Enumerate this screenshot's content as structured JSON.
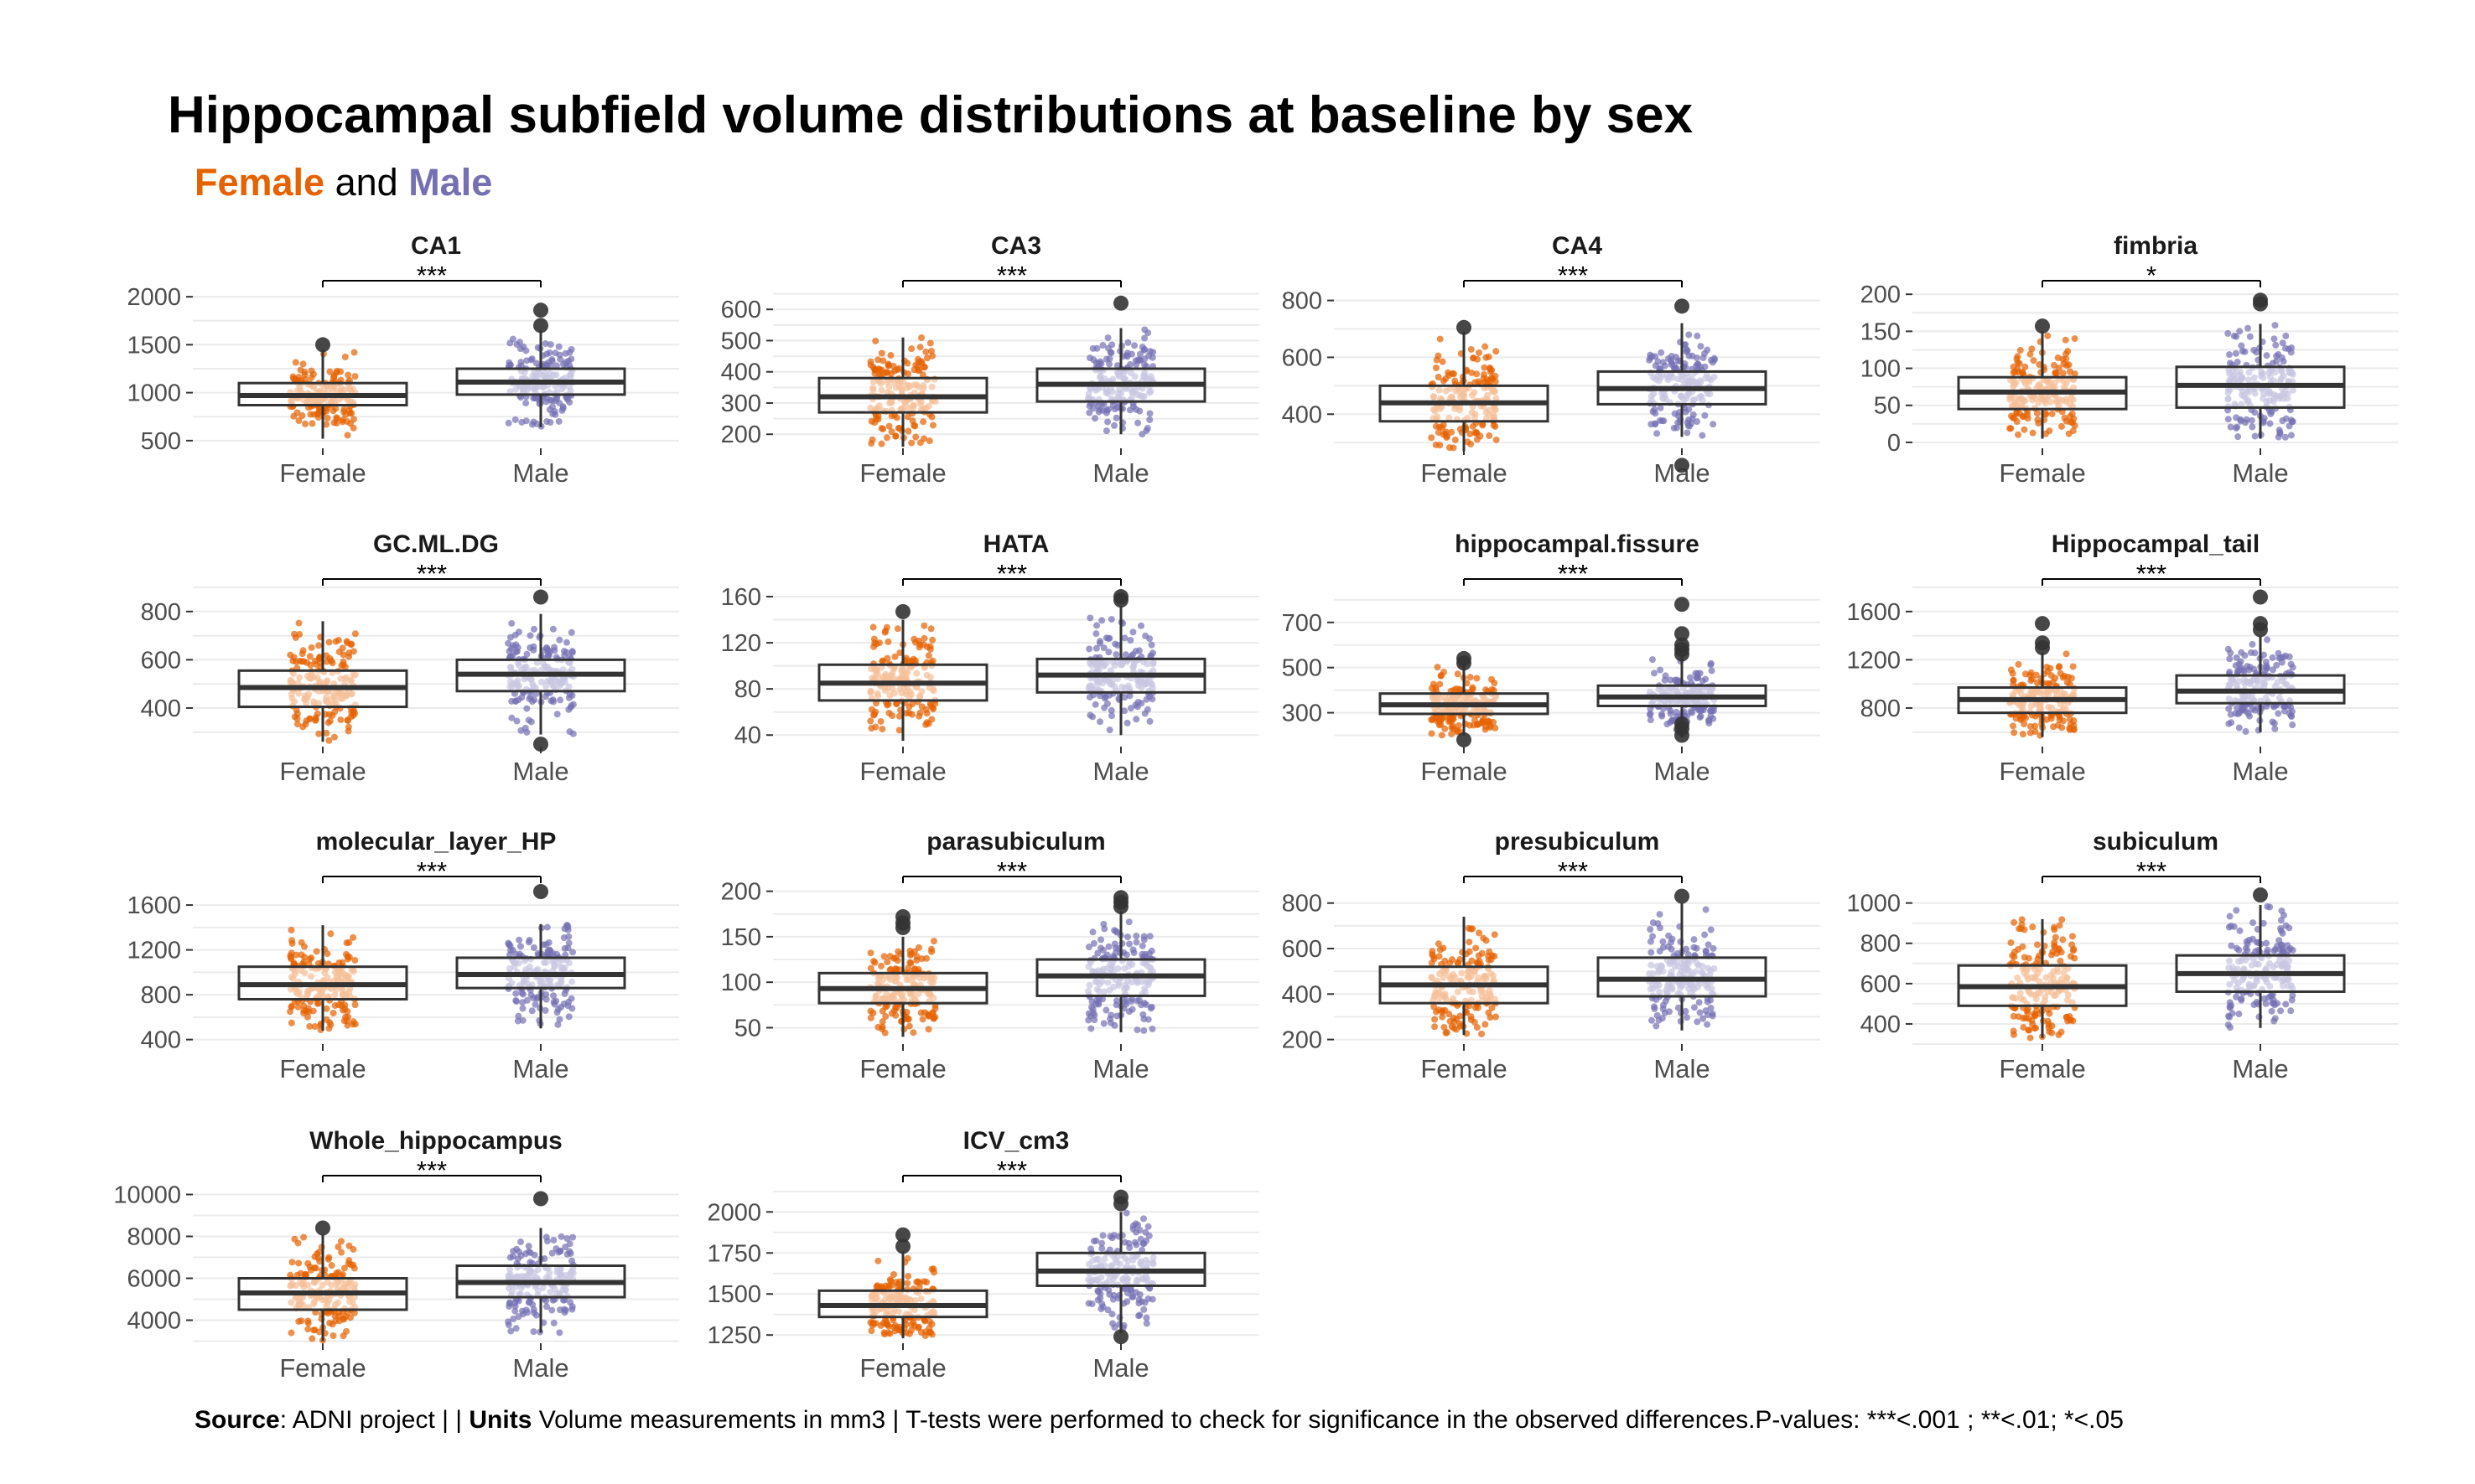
{
  "title": "Hippocampal subfield volume distributions at baseline by sex",
  "subtitle": {
    "female": "Female",
    "and": " and ",
    "male": "Male"
  },
  "caption": {
    "source_label": "Source",
    "source_text": ": ADNI project | | ",
    "units_label": "Units",
    "units_text": " Volume measurements in mm3 | T-tests were performed to check for significance in the observed differences.P-values: ***<.001 ; **<.01; *<.05"
  },
  "colors": {
    "female": "#E66100",
    "male": "#7570B3",
    "box": "#333333",
    "grid": "#ebebeb"
  },
  "chart_data": [
    {
      "type": "box",
      "title": "CA1",
      "categories": [
        "Female",
        "Male"
      ],
      "ylim": [
        420,
        2080
      ],
      "yticks": [
        500,
        1000,
        1500,
        2000
      ],
      "significance": "***",
      "series": [
        {
          "name": "Female",
          "min": 520,
          "q1": 870,
          "median": 970,
          "q3": 1100,
          "max": 1450,
          "outliers": [
            1500
          ]
        },
        {
          "name": "Male",
          "min": 640,
          "q1": 980,
          "median": 1110,
          "q3": 1250,
          "max": 1650,
          "outliers": [
            1700,
            1860
          ]
        }
      ]
    },
    {
      "type": "box",
      "title": "CA3",
      "categories": [
        "Female",
        "Male"
      ],
      "ylim": [
        155,
        665
      ],
      "yticks": [
        200,
        300,
        400,
        500,
        600
      ],
      "significance": "***",
      "series": [
        {
          "name": "Female",
          "min": 160,
          "q1": 270,
          "median": 320,
          "q3": 380,
          "max": 510,
          "outliers": []
        },
        {
          "name": "Male",
          "min": 200,
          "q1": 305,
          "median": 360,
          "q3": 410,
          "max": 540,
          "outliers": [
            620
          ]
        }
      ]
    },
    {
      "type": "box",
      "title": "CA4",
      "categories": [
        "Female",
        "Male"
      ],
      "ylim": [
        280,
        840
      ],
      "yticks": [
        400,
        600,
        800
      ],
      "significance": "***",
      "series": [
        {
          "name": "Female",
          "min": 270,
          "q1": 375,
          "median": 440,
          "q3": 500,
          "max": 690,
          "outliers": [
            705
          ]
        },
        {
          "name": "Male",
          "min": 320,
          "q1": 435,
          "median": 490,
          "q3": 550,
          "max": 720,
          "outliers": [
            780,
            220
          ]
        }
      ]
    },
    {
      "type": "box",
      "title": "fimbria",
      "categories": [
        "Female",
        "Male"
      ],
      "ylim": [
        -8,
        207
      ],
      "yticks": [
        0,
        50,
        100,
        150,
        200
      ],
      "significance": "*",
      "series": [
        {
          "name": "Female",
          "min": 5,
          "q1": 45,
          "median": 68,
          "q3": 88,
          "max": 150,
          "outliers": [
            157
          ]
        },
        {
          "name": "Male",
          "min": 5,
          "q1": 47,
          "median": 77,
          "q3": 102,
          "max": 160,
          "outliers": [
            187,
            192
          ]
        }
      ]
    },
    {
      "type": "box",
      "title": "GC.ML.DG",
      "categories": [
        "Female",
        "Male"
      ],
      "ylim": [
        240,
        900
      ],
      "yticks": [
        400,
        600,
        800
      ],
      "significance": "***",
      "series": [
        {
          "name": "Female",
          "min": 260,
          "q1": 405,
          "median": 485,
          "q3": 555,
          "max": 760,
          "outliers": []
        },
        {
          "name": "Male",
          "min": 290,
          "q1": 470,
          "median": 540,
          "q3": 600,
          "max": 790,
          "outliers": [
            860,
            250
          ]
        }
      ]
    },
    {
      "type": "box",
      "title": "HATA",
      "categories": [
        "Female",
        "Male"
      ],
      "ylim": [
        30,
        168
      ],
      "yticks": [
        40,
        80,
        120,
        160
      ],
      "significance": "***",
      "series": [
        {
          "name": "Female",
          "min": 35,
          "q1": 70,
          "median": 85,
          "q3": 101,
          "max": 140,
          "outliers": [
            147
          ]
        },
        {
          "name": "Male",
          "min": 40,
          "q1": 77,
          "median": 92,
          "q3": 106,
          "max": 152,
          "outliers": [
            160,
            157
          ]
        }
      ]
    },
    {
      "type": "box",
      "title": "hippocampal.fissure",
      "categories": [
        "Female",
        "Male"
      ],
      "ylim": [
        150,
        855
      ],
      "yticks": [
        300,
        500,
        700
      ],
      "significance": "***",
      "series": [
        {
          "name": "Female",
          "min": 200,
          "q1": 295,
          "median": 335,
          "q3": 385,
          "max": 520,
          "outliers": [
            540,
            520,
            180
          ]
        },
        {
          "name": "Male",
          "min": 190,
          "q1": 330,
          "median": 370,
          "q3": 420,
          "max": 560,
          "outliers": [
            780,
            650,
            600,
            580,
            560,
            250,
            230,
            200
          ]
        }
      ]
    },
    {
      "type": "box",
      "title": "Hippocampal_tail",
      "categories": [
        "Female",
        "Male"
      ],
      "ylim": [
        480,
        1800
      ],
      "yticks": [
        800,
        1200,
        1600
      ],
      "significance": "***",
      "series": [
        {
          "name": "Female",
          "min": 560,
          "q1": 760,
          "median": 870,
          "q3": 970,
          "max": 1260,
          "outliers": [
            1500,
            1340,
            1300
          ]
        },
        {
          "name": "Male",
          "min": 600,
          "q1": 840,
          "median": 940,
          "q3": 1070,
          "max": 1400,
          "outliers": [
            1720,
            1500,
            1450
          ]
        }
      ]
    },
    {
      "type": "box",
      "title": "molecular_layer_HP",
      "categories": [
        "Female",
        "Male"
      ],
      "ylim": [
        360,
        1780
      ],
      "yticks": [
        400,
        800,
        1200,
        1600
      ],
      "significance": "***",
      "series": [
        {
          "name": "Female",
          "min": 480,
          "q1": 760,
          "median": 890,
          "q3": 1050,
          "max": 1420,
          "outliers": []
        },
        {
          "name": "Male",
          "min": 500,
          "q1": 860,
          "median": 980,
          "q3": 1130,
          "max": 1430,
          "outliers": [
            1720
          ]
        }
      ]
    },
    {
      "type": "box",
      "title": "parasubiculum",
      "categories": [
        "Female",
        "Male"
      ],
      "ylim": [
        32,
        207
      ],
      "yticks": [
        50,
        100,
        150,
        200
      ],
      "significance": "***",
      "series": [
        {
          "name": "Female",
          "min": 40,
          "q1": 77,
          "median": 93,
          "q3": 110,
          "max": 150,
          "outliers": [
            172,
            165,
            160
          ]
        },
        {
          "name": "Male",
          "min": 45,
          "q1": 85,
          "median": 107,
          "q3": 125,
          "max": 178,
          "outliers": [
            193,
            188,
            183
          ]
        }
      ]
    },
    {
      "type": "box",
      "title": "presubiculum",
      "categories": [
        "Female",
        "Male"
      ],
      "ylim": [
        180,
        880
      ],
      "yticks": [
        200,
        400,
        600,
        800
      ],
      "significance": "***",
      "series": [
        {
          "name": "Female",
          "min": 220,
          "q1": 360,
          "median": 440,
          "q3": 520,
          "max": 740,
          "outliers": []
        },
        {
          "name": "Male",
          "min": 240,
          "q1": 390,
          "median": 465,
          "q3": 560,
          "max": 800,
          "outliers": [
            830
          ]
        }
      ]
    },
    {
      "type": "box",
      "title": "subiculum",
      "categories": [
        "Female",
        "Male"
      ],
      "ylim": [
        300,
        1090
      ],
      "yticks": [
        400,
        600,
        800,
        1000
      ],
      "significance": "***",
      "series": [
        {
          "name": "Female",
          "min": 330,
          "q1": 490,
          "median": 585,
          "q3": 690,
          "max": 920,
          "outliers": []
        },
        {
          "name": "Male",
          "min": 380,
          "q1": 560,
          "median": 650,
          "q3": 740,
          "max": 990,
          "outliers": [
            1040
          ]
        }
      ]
    },
    {
      "type": "box",
      "title": "Whole_hippocampus",
      "categories": [
        "Female",
        "Male"
      ],
      "ylim": [
        2900,
        10500
      ],
      "yticks": [
        4000,
        6000,
        8000,
        10000
      ],
      "significance": "***",
      "series": [
        {
          "name": "Female",
          "min": 3000,
          "q1": 4500,
          "median": 5300,
          "q3": 6000,
          "max": 8100,
          "outliers": [
            8400
          ]
        },
        {
          "name": "Male",
          "min": 3400,
          "q1": 5100,
          "median": 5800,
          "q3": 6600,
          "max": 8400,
          "outliers": [
            9800
          ]
        }
      ]
    },
    {
      "type": "box",
      "title": "ICV_cm3",
      "categories": [
        "Female",
        "Male"
      ],
      "ylim": [
        1200,
        2170
      ],
      "yticks": [
        1250,
        1500,
        1750,
        2000
      ],
      "significance": "***",
      "series": [
        {
          "name": "Female",
          "min": 1230,
          "q1": 1360,
          "median": 1430,
          "q3": 1520,
          "max": 1760,
          "outliers": [
            1860,
            1790
          ]
        },
        {
          "name": "Male",
          "min": 1260,
          "q1": 1550,
          "median": 1640,
          "q3": 1750,
          "max": 2000,
          "outliers": [
            2090,
            2050,
            1240
          ]
        }
      ]
    }
  ]
}
